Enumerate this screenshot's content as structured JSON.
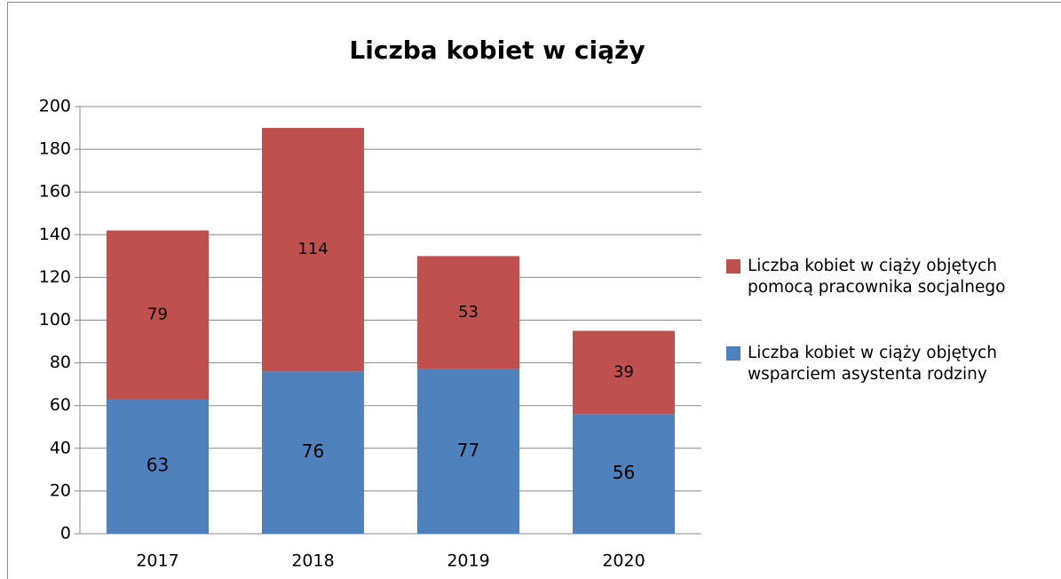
{
  "chart_data": {
    "type": "stacked_bar",
    "title": "Liczba kobiet w ciąży",
    "categories": [
      "2017",
      "2018",
      "2019",
      "2020"
    ],
    "series": [
      {
        "name": "Liczba kobiet w ciąży objętych wsparciem asystenta rodziny",
        "color": "#4f81bd",
        "values": [
          63,
          76,
          77,
          56
        ]
      },
      {
        "name": "Liczba kobiet w ciąży objętych pomocą pracownika socjalnego",
        "color": "#c0504d",
        "values": [
          79,
          114,
          53,
          39
        ]
      }
    ],
    "ylim": [
      0,
      200
    ],
    "yticks": [
      0,
      20,
      40,
      60,
      80,
      100,
      120,
      140,
      160,
      180,
      200
    ],
    "grid": true,
    "legend": "right"
  }
}
